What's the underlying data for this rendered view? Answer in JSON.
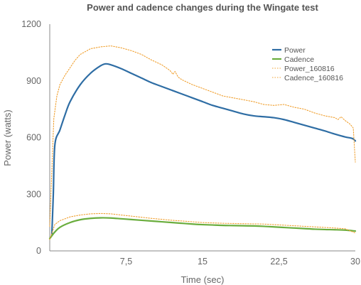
{
  "chart_data": {
    "type": "line",
    "title": "Power and cadence changes during the Wingate test",
    "xlabel": "Time (sec)",
    "ylabel": "Power (watts)",
    "xlim": [
      0,
      30
    ],
    "ylim": [
      0,
      1200
    ],
    "x_ticks": [
      7.5,
      15,
      22.5,
      30
    ],
    "x_tick_labels": [
      "7,5",
      "15",
      "22,5",
      "30"
    ],
    "y_ticks": [
      0,
      300,
      600,
      900,
      1200
    ],
    "y_tick_labels": [
      "0",
      "300",
      "600",
      "900",
      "1200"
    ],
    "grid": false,
    "legend_position": "top-right",
    "series": [
      {
        "name": "Power",
        "color": "#2e6da4",
        "style": "solid",
        "points": [
          [
            0.2,
            80
          ],
          [
            0.35,
            300
          ],
          [
            0.5,
            560
          ],
          [
            1,
            640
          ],
          [
            1.5,
            720
          ],
          [
            2,
            790
          ],
          [
            3,
            880
          ],
          [
            4,
            940
          ],
          [
            5,
            980
          ],
          [
            5.5,
            990
          ],
          [
            6,
            985
          ],
          [
            7,
            965
          ],
          [
            8,
            940
          ],
          [
            9,
            915
          ],
          [
            10,
            890
          ],
          [
            11,
            870
          ],
          [
            12,
            850
          ],
          [
            13,
            830
          ],
          [
            14,
            810
          ],
          [
            15,
            790
          ],
          [
            16,
            770
          ],
          [
            17,
            755
          ],
          [
            18,
            740
          ],
          [
            19,
            725
          ],
          [
            20,
            715
          ],
          [
            21,
            710
          ],
          [
            22,
            705
          ],
          [
            23,
            695
          ],
          [
            24,
            680
          ],
          [
            25,
            665
          ],
          [
            26,
            650
          ],
          [
            27,
            635
          ],
          [
            28,
            618
          ],
          [
            29,
            603
          ],
          [
            29.7,
            595
          ],
          [
            30,
            582
          ]
        ]
      },
      {
        "name": "Cadence",
        "color": "#6aad3d",
        "style": "solid",
        "points": [
          [
            0,
            65
          ],
          [
            0.5,
            100
          ],
          [
            1,
            125
          ],
          [
            2,
            150
          ],
          [
            3,
            165
          ],
          [
            4,
            172
          ],
          [
            5,
            175
          ],
          [
            6,
            174
          ],
          [
            7,
            170
          ],
          [
            8,
            166
          ],
          [
            9,
            162
          ],
          [
            10,
            158
          ],
          [
            11,
            154
          ],
          [
            12,
            150
          ],
          [
            13,
            146
          ],
          [
            14,
            142
          ],
          [
            15,
            139
          ],
          [
            16,
            137
          ],
          [
            17,
            135
          ],
          [
            18,
            134
          ],
          [
            19,
            133
          ],
          [
            20,
            132
          ],
          [
            21,
            130
          ],
          [
            22,
            127
          ],
          [
            23,
            124
          ],
          [
            24,
            121
          ],
          [
            25,
            118
          ],
          [
            26,
            115
          ],
          [
            27,
            113
          ],
          [
            28,
            112
          ],
          [
            29,
            110
          ],
          [
            30,
            105
          ]
        ]
      },
      {
        "name": "Power_160816",
        "color": "#f0a030",
        "style": "dotted",
        "points": [
          [
            0,
            130
          ],
          [
            0.2,
            420
          ],
          [
            0.4,
            700
          ],
          [
            0.7,
            820
          ],
          [
            1,
            880
          ],
          [
            1.5,
            930
          ],
          [
            2,
            970
          ],
          [
            2.5,
            1010
          ],
          [
            3,
            1040
          ],
          [
            4,
            1070
          ],
          [
            5,
            1080
          ],
          [
            6,
            1085
          ],
          [
            7,
            1075
          ],
          [
            8,
            1060
          ],
          [
            9,
            1040
          ],
          [
            10,
            1010
          ],
          [
            11,
            985
          ],
          [
            11.8,
            955
          ],
          [
            12.1,
            935
          ],
          [
            12.3,
            950
          ],
          [
            12.6,
            920
          ],
          [
            13,
            905
          ],
          [
            14,
            880
          ],
          [
            15,
            860
          ],
          [
            16,
            840
          ],
          [
            17,
            820
          ],
          [
            18,
            810
          ],
          [
            19,
            800
          ],
          [
            20,
            790
          ],
          [
            21,
            775
          ],
          [
            22,
            770
          ],
          [
            23,
            775
          ],
          [
            24,
            760
          ],
          [
            25,
            750
          ],
          [
            26,
            730
          ],
          [
            27,
            715
          ],
          [
            28,
            705
          ],
          [
            28.3,
            695
          ],
          [
            28.6,
            710
          ],
          [
            29,
            690
          ],
          [
            29.5,
            670
          ],
          [
            29.8,
            650
          ],
          [
            30,
            470
          ]
        ]
      },
      {
        "name": "Cadence_160816",
        "color": "#f0a030",
        "style": "dotted",
        "points": [
          [
            0,
            60
          ],
          [
            0.5,
            140
          ],
          [
            1,
            160
          ],
          [
            2,
            180
          ],
          [
            3,
            190
          ],
          [
            4,
            196
          ],
          [
            5,
            198
          ],
          [
            6,
            196
          ],
          [
            7,
            190
          ],
          [
            8,
            184
          ],
          [
            9,
            178
          ],
          [
            10,
            172
          ],
          [
            11,
            167
          ],
          [
            12,
            162
          ],
          [
            13,
            158
          ],
          [
            14,
            154
          ],
          [
            15,
            150
          ],
          [
            16,
            148
          ],
          [
            17,
            146
          ],
          [
            18,
            145
          ],
          [
            19,
            144
          ],
          [
            20,
            143
          ],
          [
            21,
            142
          ],
          [
            22,
            139
          ],
          [
            23,
            136
          ],
          [
            24,
            133
          ],
          [
            25,
            130
          ],
          [
            26,
            127
          ],
          [
            27,
            124
          ],
          [
            28,
            121
          ],
          [
            29,
            117
          ],
          [
            30,
            95
          ]
        ]
      }
    ]
  }
}
